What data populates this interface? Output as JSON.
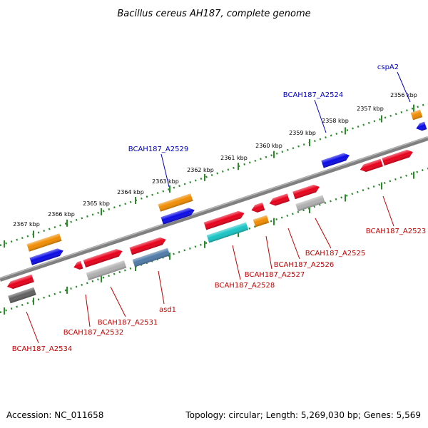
{
  "title": "Bacillus cereus AH187, complete genome",
  "footer": {
    "accession": "Accession: NC_011658",
    "topology": "Topology: circular; Length: 5,269,030 bp; Genes: 5,569"
  },
  "colors": {
    "backbone": "#808080",
    "tick_track": "#2a8a2a",
    "red": "#e8001a",
    "orange": "#f08c00",
    "blue": "#0a0ae6",
    "cyan": "#18c4c4",
    "steel": "#4e7ba8",
    "gray_light": "#b0b0b0",
    "gray_dark": "#606060",
    "label_blue": "#0000c0",
    "label_red": "#c00000"
  },
  "ticks": [
    "2356 kbp",
    "2357 kbp",
    "2358 kbp",
    "2359 kbp",
    "2360 kbp",
    "2361 kbp",
    "2362 kbp",
    "2363 kbp",
    "2364 kbp",
    "2365 kbp",
    "2366 kbp",
    "2367 kbp"
  ],
  "labels": {
    "cspA2": "cspA2",
    "a2524": "BCAH187_A2524",
    "a2529": "BCAH187_A2529",
    "a2523": "BCAH187_A2523",
    "a2525": "BCAH187_A2525",
    "a2526": "BCAH187_A2526",
    "a2527": "BCAH187_A2527",
    "a2528": "BCAH187_A2528",
    "asd1": "asd1",
    "a2531": "BCAH187_A2531",
    "a2532": "BCAH187_A2532",
    "a2534": "BCAH187_A2534"
  }
}
